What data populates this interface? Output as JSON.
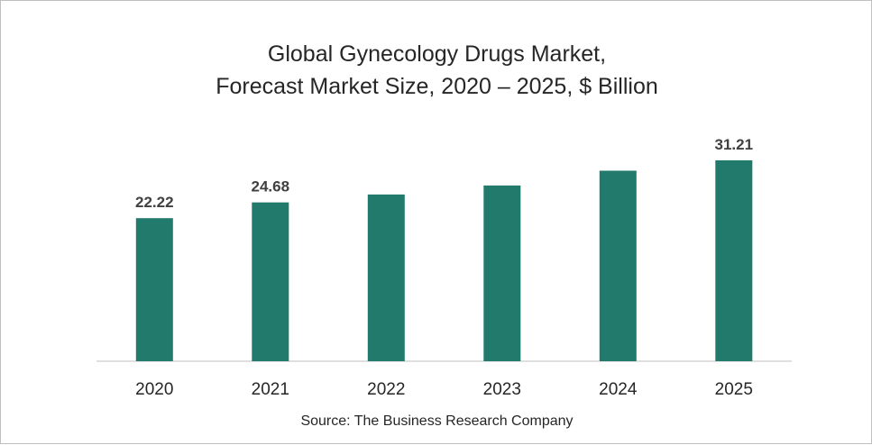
{
  "chart_data": {
    "type": "bar",
    "title": "Global Gynecology Drugs Market,",
    "subtitle": "Forecast Market Size, 2020 – 2025, $ Billion",
    "categories": [
      "2020",
      "2021",
      "2022",
      "2023",
      "2024",
      "2025"
    ],
    "values": [
      22.22,
      24.68,
      25.9,
      27.3,
      29.6,
      31.21
    ],
    "data_labels": [
      "22.22",
      "24.68",
      "",
      "",
      "",
      "31.21"
    ],
    "xlabel": "",
    "ylabel": "",
    "ylim": [
      0,
      31.21
    ],
    "grid": false,
    "legend": "none",
    "bar_color": "#217a6c",
    "source": "Source: The Business Research Company"
  }
}
